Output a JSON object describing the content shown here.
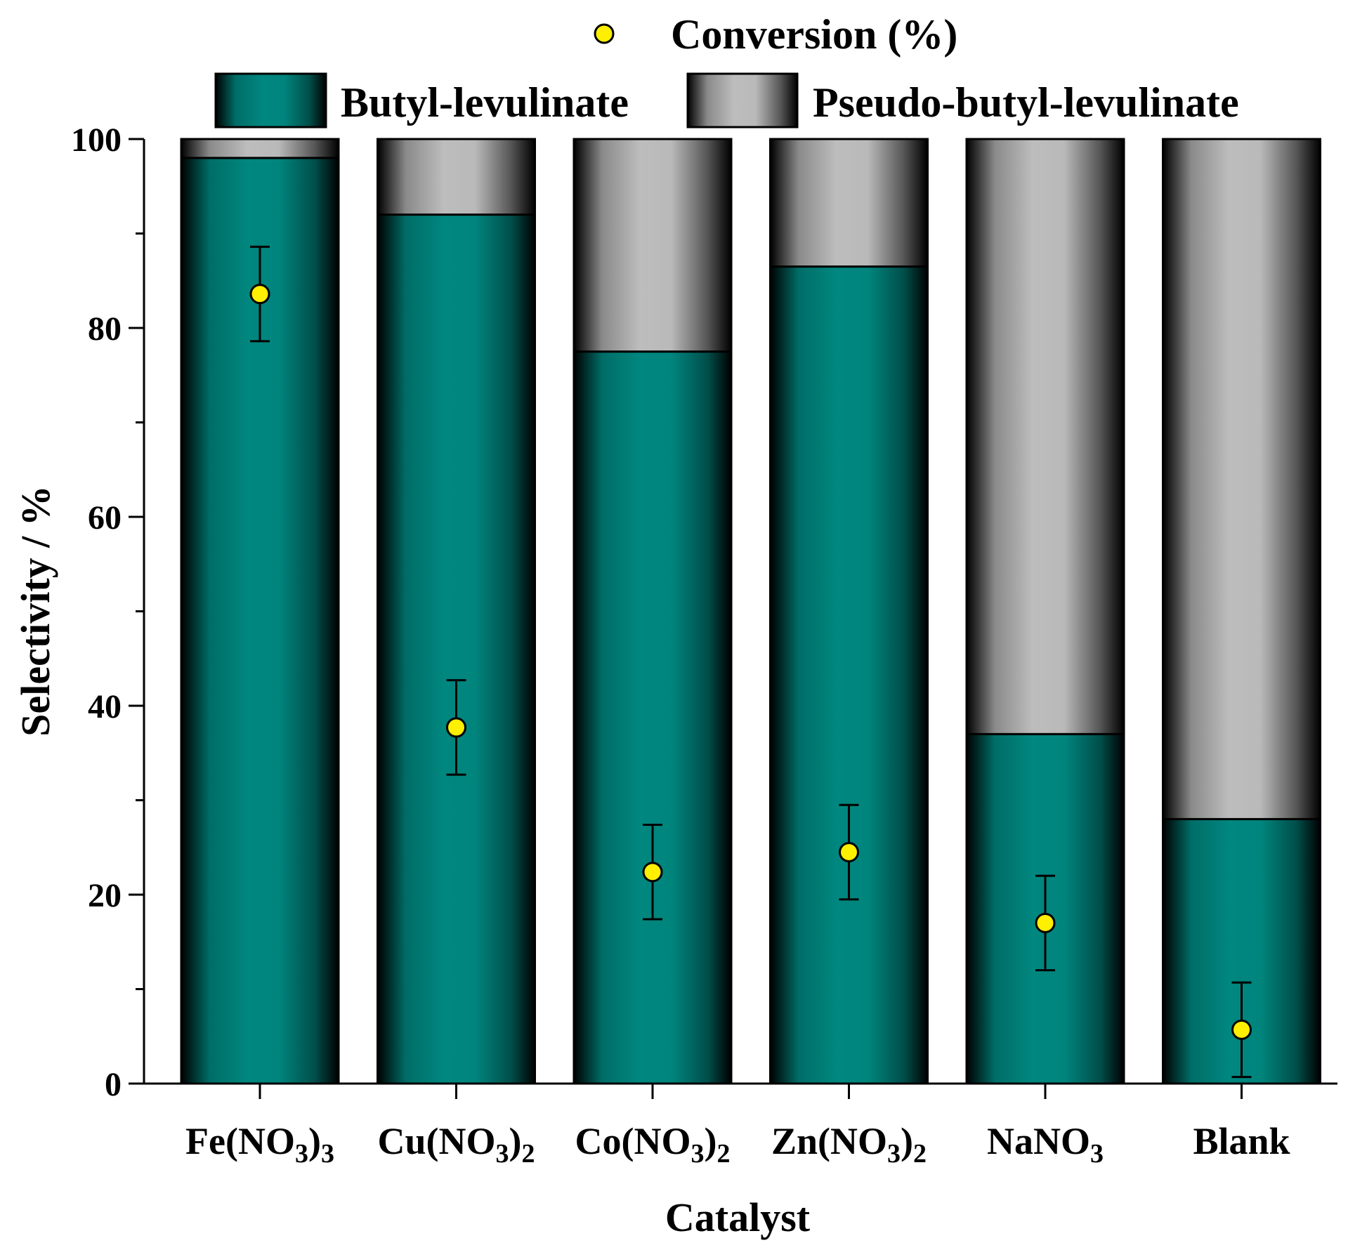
{
  "chart_data": {
    "type": "bar",
    "stacked": true,
    "xlabel": "Catalyst",
    "ylabel": "Selectivity / %",
    "ylim": [
      0,
      100
    ],
    "yticks": [
      0,
      20,
      40,
      60,
      80,
      100
    ],
    "categories": [
      {
        "base": "Fe(NO",
        "sub": "3",
        "close": ")",
        "sub2": "3"
      },
      {
        "base": "Cu(NO",
        "sub": "3",
        "close": ")",
        "sub2": "2"
      },
      {
        "base": "Co(NO",
        "sub": "3",
        "close": ")",
        "sub2": "2"
      },
      {
        "base": "Zn(NO",
        "sub": "3",
        "close": ")",
        "sub2": "2"
      },
      {
        "base": "NaNO",
        "sub": "3",
        "close": "",
        "sub2": ""
      },
      {
        "base": "Blank",
        "sub": "",
        "close": "",
        "sub2": ""
      }
    ],
    "series": [
      {
        "name": "Butyl-levulinate",
        "kind": "bar",
        "color": "#00877f",
        "values": [
          98,
          92,
          77.5,
          86.5,
          37,
          28
        ]
      },
      {
        "name": "Pseudo-butyl-levulinate",
        "kind": "bar",
        "color": "#bdbdbd",
        "values": [
          2,
          8,
          22.5,
          13.5,
          63,
          72
        ]
      },
      {
        "name": "Conversion (%)",
        "kind": "scatter",
        "color": "#ffef00",
        "values": [
          83.6,
          37.7,
          22.4,
          24.5,
          17,
          5.7
        ],
        "errors": [
          5,
          5,
          5,
          5,
          5,
          5
        ]
      }
    ],
    "legend": {
      "placement": "top"
    }
  }
}
